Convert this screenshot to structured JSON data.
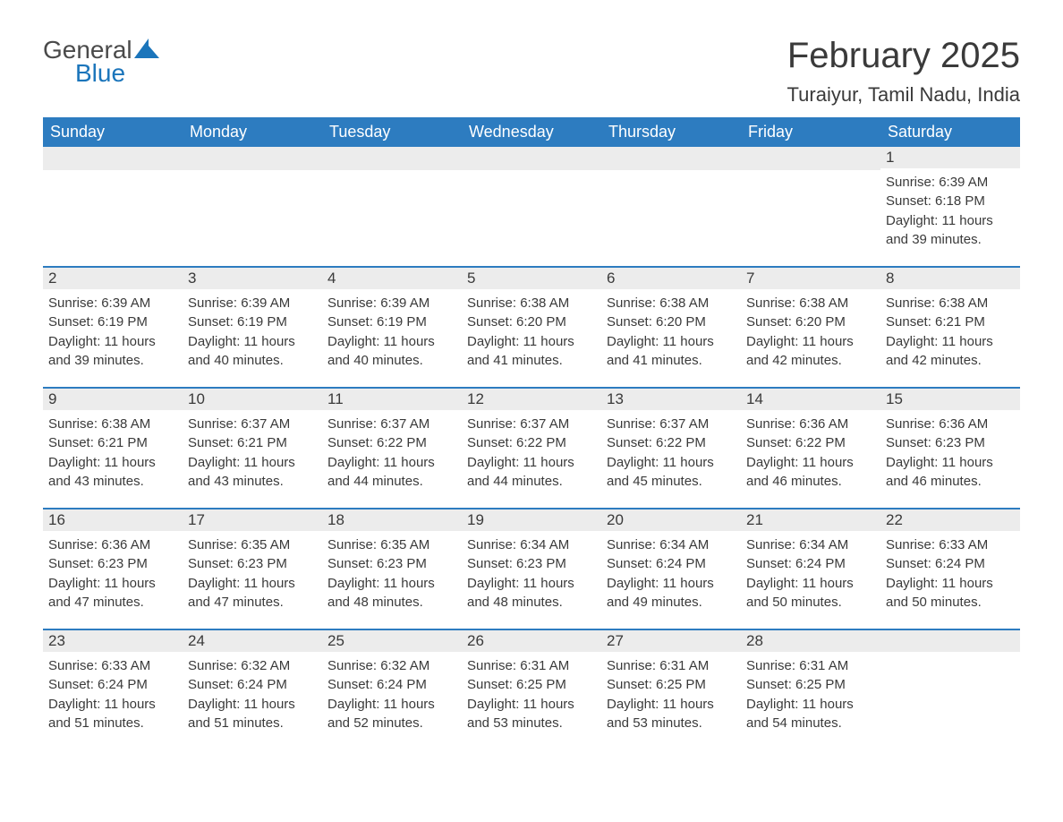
{
  "logo": {
    "text1": "General",
    "text2": "Blue"
  },
  "title": "February 2025",
  "location": "Turaiyur, Tamil Nadu, India",
  "colors": {
    "header_bg": "#2d7cc0",
    "header_text": "#ffffff",
    "day_bg": "#ececec",
    "border": "#2d7cc0",
    "text": "#3a3a3a",
    "logo_blue": "#1b75bb"
  },
  "weekdays": [
    "Sunday",
    "Monday",
    "Tuesday",
    "Wednesday",
    "Thursday",
    "Friday",
    "Saturday"
  ],
  "weeks": [
    [
      null,
      null,
      null,
      null,
      null,
      null,
      {
        "n": "1",
        "sunrise": "Sunrise: 6:39 AM",
        "sunset": "Sunset: 6:18 PM",
        "daylight1": "Daylight: 11 hours",
        "daylight2": "and 39 minutes."
      }
    ],
    [
      {
        "n": "2",
        "sunrise": "Sunrise: 6:39 AM",
        "sunset": "Sunset: 6:19 PM",
        "daylight1": "Daylight: 11 hours",
        "daylight2": "and 39 minutes."
      },
      {
        "n": "3",
        "sunrise": "Sunrise: 6:39 AM",
        "sunset": "Sunset: 6:19 PM",
        "daylight1": "Daylight: 11 hours",
        "daylight2": "and 40 minutes."
      },
      {
        "n": "4",
        "sunrise": "Sunrise: 6:39 AM",
        "sunset": "Sunset: 6:19 PM",
        "daylight1": "Daylight: 11 hours",
        "daylight2": "and 40 minutes."
      },
      {
        "n": "5",
        "sunrise": "Sunrise: 6:38 AM",
        "sunset": "Sunset: 6:20 PM",
        "daylight1": "Daylight: 11 hours",
        "daylight2": "and 41 minutes."
      },
      {
        "n": "6",
        "sunrise": "Sunrise: 6:38 AM",
        "sunset": "Sunset: 6:20 PM",
        "daylight1": "Daylight: 11 hours",
        "daylight2": "and 41 minutes."
      },
      {
        "n": "7",
        "sunrise": "Sunrise: 6:38 AM",
        "sunset": "Sunset: 6:20 PM",
        "daylight1": "Daylight: 11 hours",
        "daylight2": "and 42 minutes."
      },
      {
        "n": "8",
        "sunrise": "Sunrise: 6:38 AM",
        "sunset": "Sunset: 6:21 PM",
        "daylight1": "Daylight: 11 hours",
        "daylight2": "and 42 minutes."
      }
    ],
    [
      {
        "n": "9",
        "sunrise": "Sunrise: 6:38 AM",
        "sunset": "Sunset: 6:21 PM",
        "daylight1": "Daylight: 11 hours",
        "daylight2": "and 43 minutes."
      },
      {
        "n": "10",
        "sunrise": "Sunrise: 6:37 AM",
        "sunset": "Sunset: 6:21 PM",
        "daylight1": "Daylight: 11 hours",
        "daylight2": "and 43 minutes."
      },
      {
        "n": "11",
        "sunrise": "Sunrise: 6:37 AM",
        "sunset": "Sunset: 6:22 PM",
        "daylight1": "Daylight: 11 hours",
        "daylight2": "and 44 minutes."
      },
      {
        "n": "12",
        "sunrise": "Sunrise: 6:37 AM",
        "sunset": "Sunset: 6:22 PM",
        "daylight1": "Daylight: 11 hours",
        "daylight2": "and 44 minutes."
      },
      {
        "n": "13",
        "sunrise": "Sunrise: 6:37 AM",
        "sunset": "Sunset: 6:22 PM",
        "daylight1": "Daylight: 11 hours",
        "daylight2": "and 45 minutes."
      },
      {
        "n": "14",
        "sunrise": "Sunrise: 6:36 AM",
        "sunset": "Sunset: 6:22 PM",
        "daylight1": "Daylight: 11 hours",
        "daylight2": "and 46 minutes."
      },
      {
        "n": "15",
        "sunrise": "Sunrise: 6:36 AM",
        "sunset": "Sunset: 6:23 PM",
        "daylight1": "Daylight: 11 hours",
        "daylight2": "and 46 minutes."
      }
    ],
    [
      {
        "n": "16",
        "sunrise": "Sunrise: 6:36 AM",
        "sunset": "Sunset: 6:23 PM",
        "daylight1": "Daylight: 11 hours",
        "daylight2": "and 47 minutes."
      },
      {
        "n": "17",
        "sunrise": "Sunrise: 6:35 AM",
        "sunset": "Sunset: 6:23 PM",
        "daylight1": "Daylight: 11 hours",
        "daylight2": "and 47 minutes."
      },
      {
        "n": "18",
        "sunrise": "Sunrise: 6:35 AM",
        "sunset": "Sunset: 6:23 PM",
        "daylight1": "Daylight: 11 hours",
        "daylight2": "and 48 minutes."
      },
      {
        "n": "19",
        "sunrise": "Sunrise: 6:34 AM",
        "sunset": "Sunset: 6:23 PM",
        "daylight1": "Daylight: 11 hours",
        "daylight2": "and 48 minutes."
      },
      {
        "n": "20",
        "sunrise": "Sunrise: 6:34 AM",
        "sunset": "Sunset: 6:24 PM",
        "daylight1": "Daylight: 11 hours",
        "daylight2": "and 49 minutes."
      },
      {
        "n": "21",
        "sunrise": "Sunrise: 6:34 AM",
        "sunset": "Sunset: 6:24 PM",
        "daylight1": "Daylight: 11 hours",
        "daylight2": "and 50 minutes."
      },
      {
        "n": "22",
        "sunrise": "Sunrise: 6:33 AM",
        "sunset": "Sunset: 6:24 PM",
        "daylight1": "Daylight: 11 hours",
        "daylight2": "and 50 minutes."
      }
    ],
    [
      {
        "n": "23",
        "sunrise": "Sunrise: 6:33 AM",
        "sunset": "Sunset: 6:24 PM",
        "daylight1": "Daylight: 11 hours",
        "daylight2": "and 51 minutes."
      },
      {
        "n": "24",
        "sunrise": "Sunrise: 6:32 AM",
        "sunset": "Sunset: 6:24 PM",
        "daylight1": "Daylight: 11 hours",
        "daylight2": "and 51 minutes."
      },
      {
        "n": "25",
        "sunrise": "Sunrise: 6:32 AM",
        "sunset": "Sunset: 6:24 PM",
        "daylight1": "Daylight: 11 hours",
        "daylight2": "and 52 minutes."
      },
      {
        "n": "26",
        "sunrise": "Sunrise: 6:31 AM",
        "sunset": "Sunset: 6:25 PM",
        "daylight1": "Daylight: 11 hours",
        "daylight2": "and 53 minutes."
      },
      {
        "n": "27",
        "sunrise": "Sunrise: 6:31 AM",
        "sunset": "Sunset: 6:25 PM",
        "daylight1": "Daylight: 11 hours",
        "daylight2": "and 53 minutes."
      },
      {
        "n": "28",
        "sunrise": "Sunrise: 6:31 AM",
        "sunset": "Sunset: 6:25 PM",
        "daylight1": "Daylight: 11 hours",
        "daylight2": "and 54 minutes."
      },
      null
    ]
  ]
}
